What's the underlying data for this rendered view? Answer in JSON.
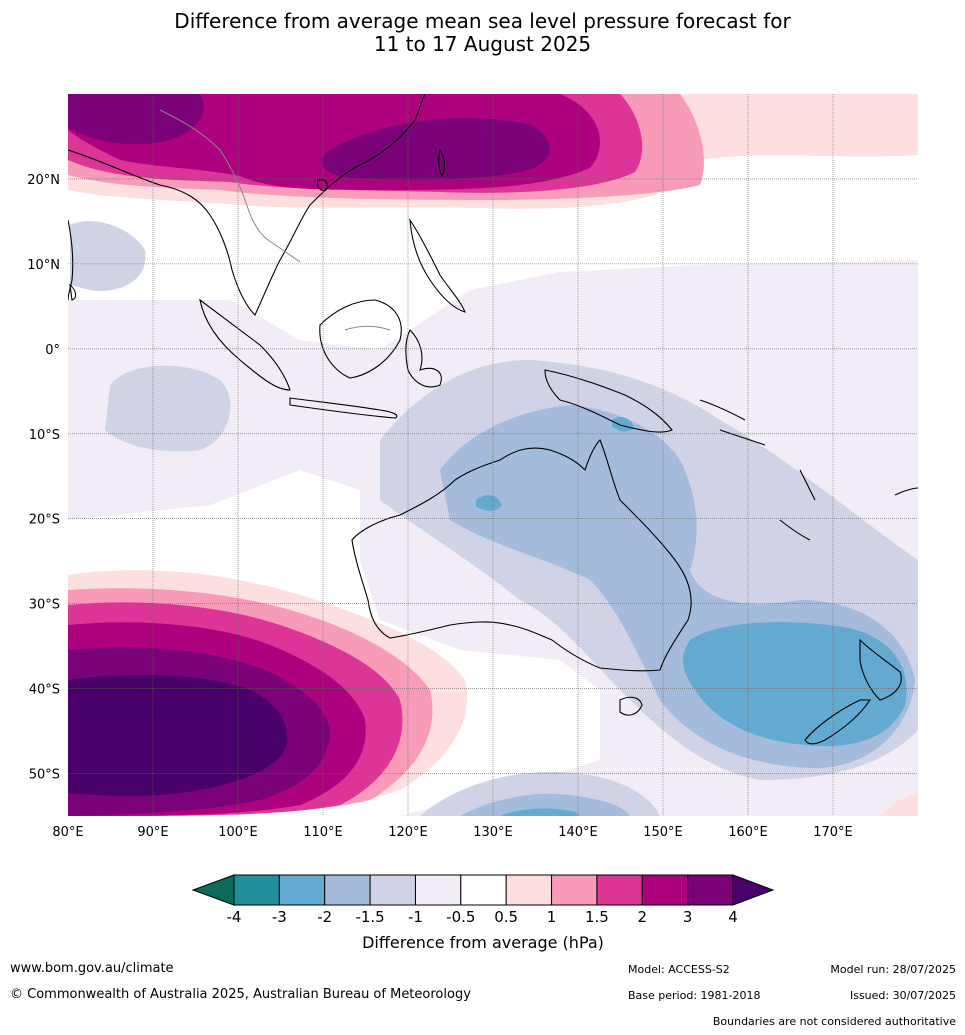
{
  "title": {
    "line1": "Difference from average mean sea level pressure forecast for",
    "line2": "11 to 17 August 2025"
  },
  "map": {
    "lon_labels": [
      "80°E",
      "90°E",
      "100°E",
      "110°E",
      "120°E",
      "130°E",
      "140°E",
      "150°E",
      "160°E",
      "170°E"
    ],
    "lat_labels": [
      "20°N",
      "10°N",
      "0°",
      "10°S",
      "20°S",
      "30°S",
      "40°S",
      "50°S"
    ],
    "lon_range": [
      80,
      180
    ],
    "lat_range": [
      -55,
      30
    ]
  },
  "colorbar": {
    "title": "Difference from average (hPa)",
    "tick_labels": [
      "-4",
      "-3",
      "-2",
      "-1.5",
      "-1",
      "-0.5",
      "0.5",
      "1",
      "1.5",
      "2",
      "3",
      "4"
    ],
    "colors": [
      "#0b6b5a",
      "#1f9099",
      "#64a9cf",
      "#a4bbdc",
      "#d0d3e6",
      "#f1ecf5",
      "#ffffff",
      "#fddfdf",
      "#f89bb8",
      "#dd3597",
      "#ad017e",
      "#7a0177",
      "#49006a"
    ]
  },
  "footer": {
    "url": "www.bom.gov.au/climate",
    "copyright": "© Commonwealth of Australia 2025, Australian Bureau of Meteorology",
    "model": "Model: ACCESS-S2",
    "base_period": "Base period: 1981-2018",
    "model_run": "Model run: 28/07/2025",
    "issued": "Issued: 30/07/2025",
    "disclaimer": "Boundaries are not considered authoritative"
  }
}
